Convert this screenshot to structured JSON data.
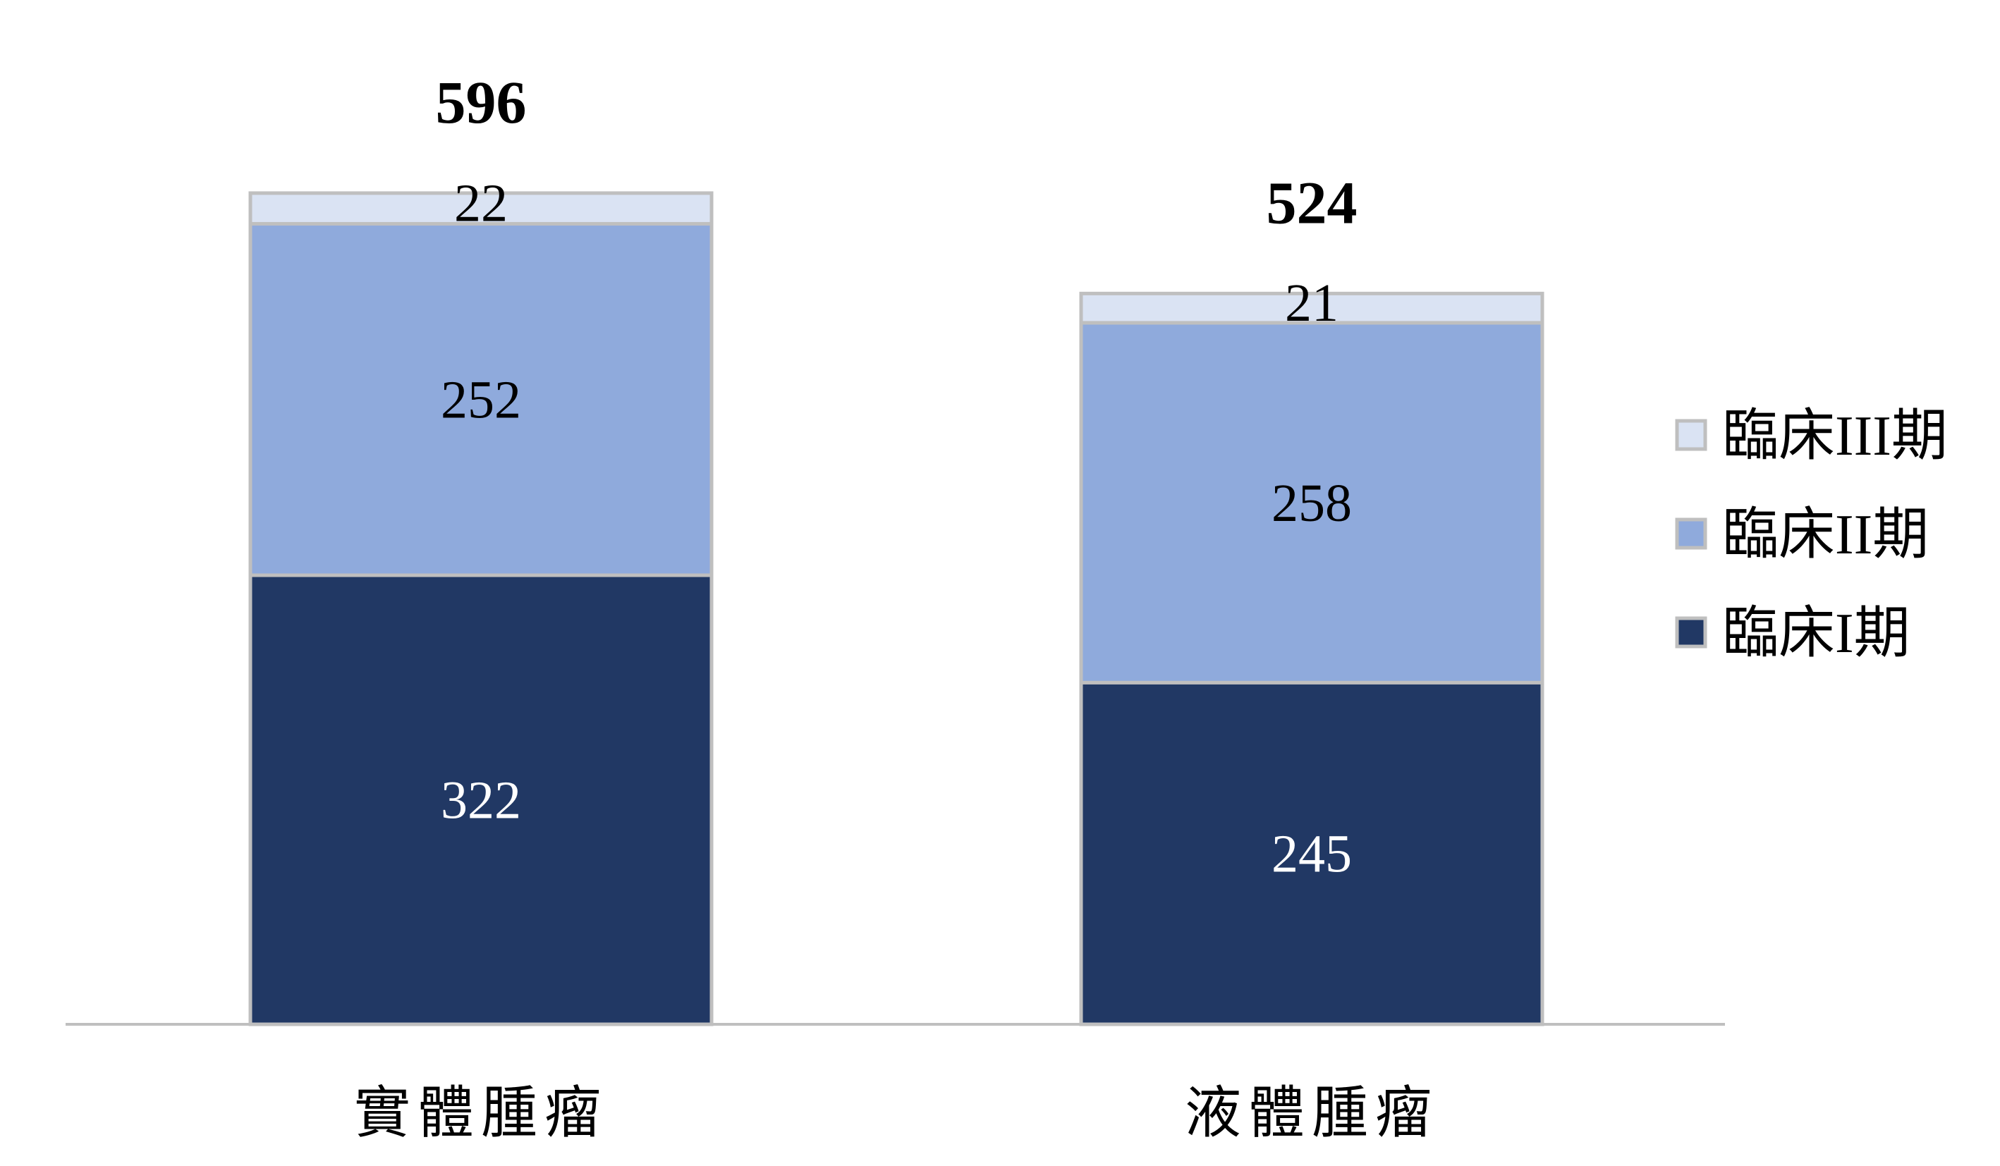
{
  "chart_data": {
    "type": "bar",
    "stacked": true,
    "categories": [
      "實體腫瘤",
      "液體腫瘤"
    ],
    "series": [
      {
        "name": "臨床I期",
        "values": [
          322,
          245
        ],
        "color": "#213864",
        "label_color": "#ffffff"
      },
      {
        "name": "臨床II期",
        "values": [
          252,
          258
        ],
        "color": "#8faadc",
        "label_color": "#000000"
      },
      {
        "name": "臨床III期",
        "values": [
          22,
          21
        ],
        "color": "#dae3f3",
        "label_color": "#000000"
      }
    ],
    "totals": [
      "596",
      "524"
    ],
    "legend_order": [
      "臨床III期",
      "臨床II期",
      "臨床I期"
    ],
    "legend_position": "right",
    "title": "",
    "xlabel": "",
    "ylabel": "",
    "ylim": [
      0,
      600
    ],
    "grid": false,
    "axis_color": "#bfbfbf"
  }
}
